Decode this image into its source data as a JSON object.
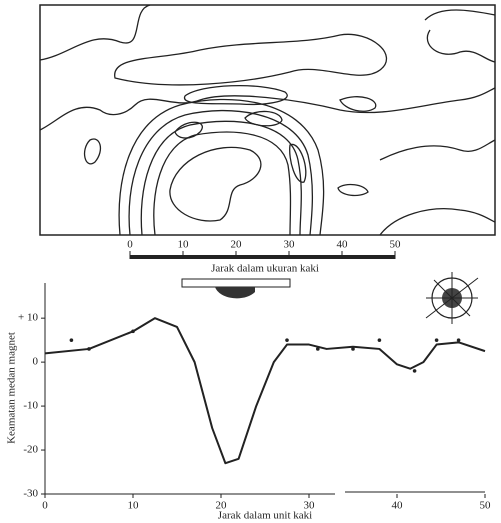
{
  "chart_data": {
    "type": "line",
    "x_label": "Jarak dalam unit kaki",
    "y_label": "Keamatan medan magnet",
    "x": [
      0,
      5,
      10,
      12.5,
      15,
      17,
      19,
      20.5,
      22,
      24,
      26,
      27.5,
      30,
      32,
      35,
      38,
      40,
      41.5,
      43,
      44.5,
      47,
      50
    ],
    "values": [
      2,
      3,
      7,
      10,
      8,
      0,
      -15,
      -23,
      -22,
      -10,
      0,
      4,
      4,
      3,
      3.5,
      3,
      -0.5,
      -1.5,
      0,
      4,
      4.5,
      2.5
    ],
    "points": {
      "x": [
        3,
        5,
        10,
        27.5,
        31,
        35,
        38,
        42,
        44.5,
        47
      ],
      "values": [
        5,
        3,
        7,
        5,
        3,
        3,
        5,
        -2,
        5,
        5
      ]
    },
    "color": "#222222",
    "xlim": [
      0,
      50
    ],
    "xticks": [
      0,
      10,
      20,
      30,
      40,
      50
    ],
    "ylim": [
      -30,
      18
    ],
    "yticks": [
      {
        "value": 10,
        "label": "+ 10"
      },
      0,
      -10,
      -20,
      -30
    ],
    "scale_bar": {
      "label": "Jarak dalam ukuran kaki",
      "ticks": [
        0,
        10,
        20,
        30,
        40,
        50
      ]
    }
  }
}
